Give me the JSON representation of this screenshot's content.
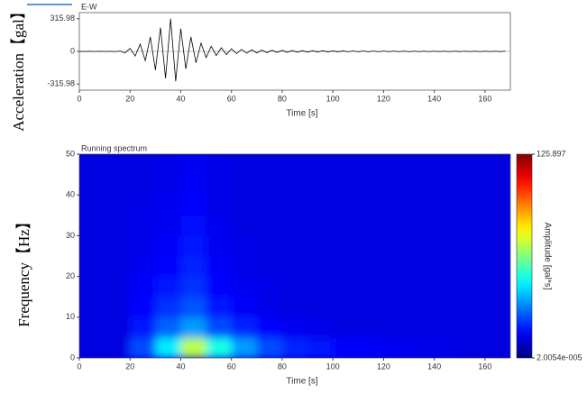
{
  "chart_data": [
    {
      "type": "line",
      "title": "E-W",
      "xlabel": "Time [s]",
      "ylabel": "Acceleration【gal】",
      "color": "#000000",
      "x": [
        0,
        2,
        4,
        6,
        8,
        10,
        12,
        14,
        16,
        18,
        20,
        22,
        24,
        26,
        28,
        30,
        32,
        34,
        36,
        38,
        40,
        42,
        44,
        46,
        48,
        50,
        52,
        54,
        56,
        58,
        60,
        62,
        64,
        66,
        68,
        70,
        72,
        74,
        76,
        78,
        80,
        82,
        84,
        86,
        88,
        90,
        92,
        94,
        96,
        98,
        100,
        102,
        104,
        106,
        108,
        110,
        112,
        114,
        116,
        118,
        120,
        122,
        124,
        126,
        128,
        130,
        132,
        134,
        136,
        138,
        140,
        142,
        144,
        146,
        148,
        150,
        152,
        154,
        156,
        158,
        160,
        162,
        164,
        166,
        168
      ],
      "values": [
        0,
        -1,
        1,
        -1,
        1,
        -1,
        1,
        -2,
        3,
        -15,
        30,
        -45,
        70,
        -90,
        140,
        -180,
        230,
        -260,
        316,
        -290,
        220,
        -170,
        140,
        -110,
        80,
        -60,
        50,
        -40,
        35,
        -30,
        25,
        -22,
        20,
        -18,
        15,
        -14,
        12,
        -12,
        11,
        -10,
        10,
        -9,
        8,
        -8,
        7,
        -7,
        6,
        -6,
        6,
        -5,
        5,
        -5,
        5,
        -4,
        4,
        -4,
        4,
        -4,
        3,
        -3,
        3,
        -3,
        3,
        -3,
        3,
        -3,
        2,
        -2,
        2,
        -2,
        2,
        -2,
        2,
        -2,
        2,
        -2,
        2,
        -2,
        2,
        -2,
        2,
        -2,
        2,
        -2,
        2
      ],
      "xlim": [
        0,
        170
      ],
      "xticks": [
        0,
        20,
        40,
        60,
        80,
        100,
        120,
        140,
        160
      ],
      "ylim": [
        -375,
        375
      ],
      "yticks": [
        -315.98,
        0,
        315.98
      ],
      "grid": false
    },
    {
      "type": "heatmap",
      "title": "Running spectrum",
      "xlabel": "Time [s]",
      "ylabel": "Frequency【Hz】",
      "zlabel": "Amplitude [gal*s]",
      "colorscale": "jet",
      "xbins": [
        0,
        10,
        20,
        30,
        40,
        50,
        60,
        70,
        80,
        90,
        100,
        110,
        120,
        130,
        140,
        150,
        160,
        170
      ],
      "ybins": [
        0,
        5,
        10,
        15,
        20,
        25,
        30,
        35,
        40,
        45,
        50
      ],
      "z": [
        [
          12,
          12,
          25,
          45,
          70,
          50,
          35,
          25,
          20,
          18,
          16,
          15,
          14,
          13,
          13,
          12,
          12
        ],
        [
          12,
          12,
          18,
          28,
          35,
          25,
          20,
          16,
          14,
          13,
          12,
          12,
          12,
          12,
          12,
          12,
          12
        ],
        [
          12,
          12,
          16,
          22,
          26,
          18,
          15,
          13,
          12,
          12,
          12,
          12,
          12,
          12,
          12,
          12,
          12
        ],
        [
          12,
          12,
          15,
          18,
          22,
          16,
          14,
          13,
          12,
          12,
          12,
          12,
          12,
          12,
          12,
          12,
          12
        ],
        [
          12,
          12,
          14,
          16,
          20,
          15,
          13,
          12,
          12,
          12,
          12,
          12,
          12,
          12,
          12,
          12,
          12
        ],
        [
          12,
          12,
          13,
          15,
          18,
          14,
          13,
          12,
          12,
          12,
          12,
          12,
          12,
          12,
          12,
          12,
          12
        ],
        [
          12,
          12,
          13,
          14,
          17,
          14,
          12,
          12,
          12,
          12,
          12,
          12,
          12,
          12,
          12,
          12,
          12
        ],
        [
          12,
          12,
          13,
          14,
          16,
          13,
          12,
          12,
          12,
          12,
          12,
          12,
          12,
          12,
          12,
          12,
          12
        ],
        [
          12,
          12,
          12,
          13,
          15,
          13,
          12,
          12,
          12,
          12,
          12,
          12,
          12,
          12,
          12,
          12,
          12
        ],
        [
          12,
          12,
          12,
          13,
          14,
          13,
          12,
          12,
          12,
          12,
          12,
          12,
          12,
          12,
          12,
          12,
          12
        ]
      ],
      "zlim": [
        2.0054e-05,
        125.897
      ],
      "zticks": [
        {
          "value": 2.0054e-05,
          "label": "2.0054e-005"
        },
        125.897
      ],
      "xlim": [
        0,
        170
      ],
      "xticks": [
        0,
        20,
        40,
        60,
        80,
        100,
        120,
        140,
        160
      ],
      "ylim": [
        0,
        50
      ],
      "yticks": [
        0,
        10,
        20,
        30,
        40,
        50
      ],
      "grid": false
    }
  ]
}
